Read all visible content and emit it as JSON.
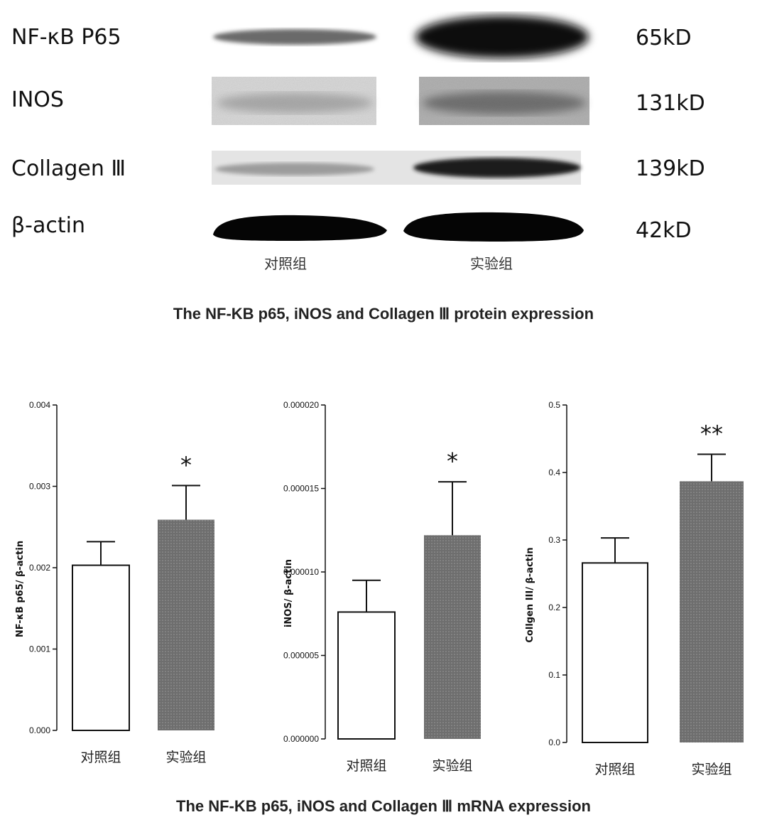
{
  "blot": {
    "rows": [
      {
        "label": "NF-κB P65",
        "kd": "65kD"
      },
      {
        "label": "INOS",
        "kd": "131kD"
      },
      {
        "label": "Collagen Ⅲ",
        "kd": "139kD"
      },
      {
        "label": "β-actin",
        "kd": "42kD"
      }
    ],
    "groups": [
      "对照组",
      "实验组"
    ],
    "caption": "The NF-KB p65, iNOS and Collagen Ⅲ protein expression"
  },
  "bottom_caption": "The NF-KB p65, iNOS and Collagen Ⅲ mRNA expression",
  "colors": {
    "control_bar": "#ffffff",
    "exp_bar": "#6e6e6e",
    "axis": "#111111"
  },
  "chart_data": [
    {
      "type": "bar",
      "categories": [
        "对照组",
        "实验组"
      ],
      "values": [
        0.00203,
        0.00259
      ],
      "errors": [
        0.00029,
        0.00042
      ],
      "significance": [
        "",
        "*"
      ],
      "ylabel": "NF-κB p65/ β-actin",
      "ylim": [
        0,
        0.004
      ],
      "yticks": [
        0,
        0.001,
        0.002,
        0.003,
        0.004
      ],
      "ytick_labels": [
        "0.000",
        "0.001",
        "0.002",
        "0.003",
        "0.004"
      ]
    },
    {
      "type": "bar",
      "categories": [
        "对照组",
        "实验组"
      ],
      "values": [
        7.6e-06,
        1.22e-05
      ],
      "errors": [
        1.9e-06,
        3.2e-06
      ],
      "significance": [
        "",
        "*"
      ],
      "ylabel": "iNOS/ β-actin",
      "ylim": [
        0,
        2e-05
      ],
      "yticks": [
        0,
        5e-06,
        1e-05,
        1.5e-05,
        2e-05
      ],
      "ytick_labels": [
        "0.000000",
        "0.000005",
        "0.000010",
        "0.000015",
        "0.000020"
      ]
    },
    {
      "type": "bar",
      "categories": [
        "对照组",
        "实验组"
      ],
      "values": [
        0.266,
        0.387
      ],
      "errors": [
        0.037,
        0.04
      ],
      "significance": [
        "",
        "**"
      ],
      "ylabel": "Collgen III/ β-actin",
      "ylim": [
        0,
        0.5
      ],
      "yticks": [
        0,
        0.1,
        0.2,
        0.3,
        0.4,
        0.5
      ],
      "ytick_labels": [
        "0.0",
        "0.1",
        "0.2",
        "0.3",
        "0.4",
        "0.5"
      ]
    }
  ]
}
